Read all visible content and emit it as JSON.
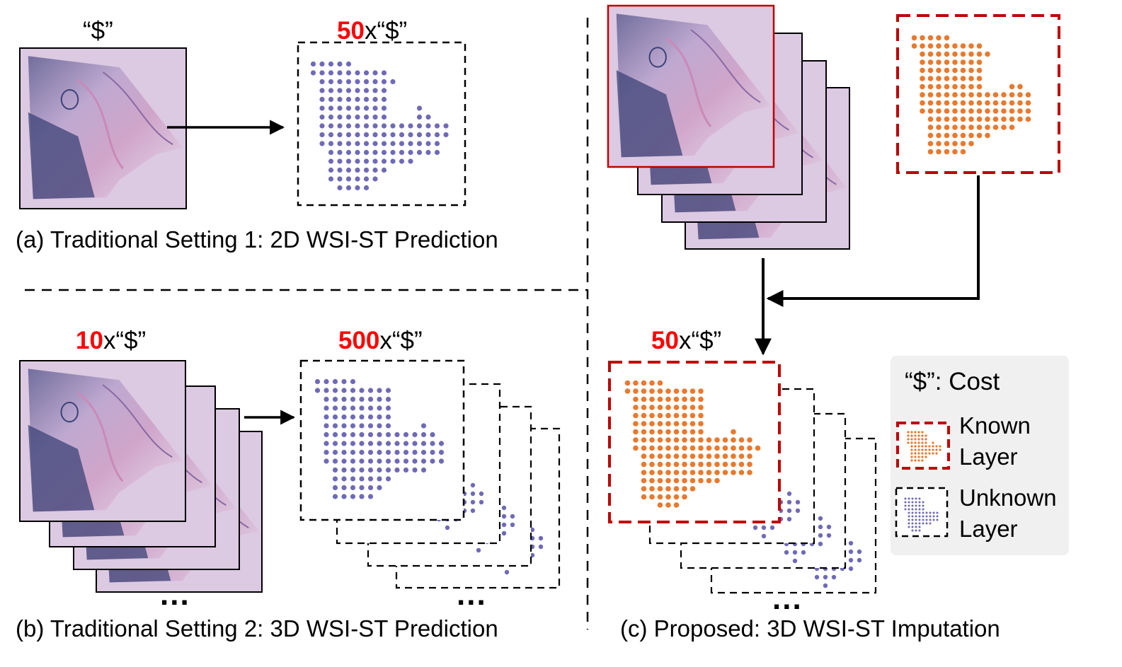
{
  "colors": {
    "tissue_bg": "#dcc9e2",
    "tissue_dark": "#3c4377",
    "tissue_mid": "#8a6aa3",
    "tissue_pink": "#c98ab9",
    "unknown_spot": "#6f6ab6",
    "known_spot": "#e8792e",
    "known_border": "#c00000",
    "accent_red": "#ff0000",
    "legend_bg": "#f0f0f0"
  },
  "panel_a": {
    "cost_label": "“$”",
    "output_multiplier": "50",
    "output_suffix": "x“$”",
    "caption": "(a) Traditional Setting 1: 2D WSI-ST Prediction"
  },
  "panel_b": {
    "input_multiplier": "10",
    "input_suffix": "x“$”",
    "output_multiplier": "500",
    "output_suffix": "x“$”",
    "ellipsis": "...",
    "caption": "(b) Traditional Setting 2: 3D WSI-ST Prediction"
  },
  "panel_c": {
    "output_multiplier": "50",
    "output_suffix": "x“$”",
    "ellipsis": "...",
    "caption": "(c) Proposed: 3D WSI-ST Imputation"
  },
  "legend": {
    "cost_text": "“$”: Cost",
    "known_line1": "Known",
    "known_line2": "Layer",
    "unknown_line1": "Unknown",
    "unknown_line2": "Layer"
  }
}
